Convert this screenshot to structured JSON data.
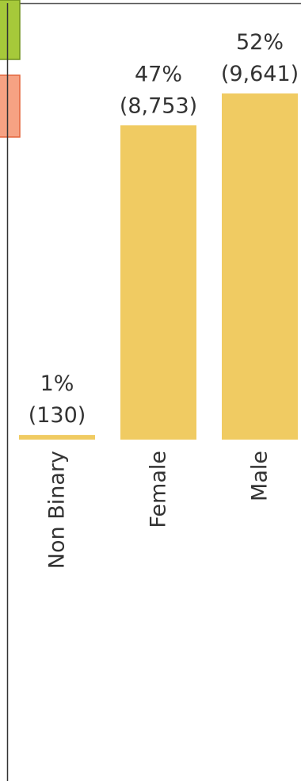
{
  "chart_data": {
    "type": "bar",
    "categories": [
      "Non Binary",
      "Female",
      "Male"
    ],
    "values": [
      130,
      8753,
      9641
    ],
    "percent_labels": [
      "1%",
      "47%",
      "52%"
    ],
    "count_labels": [
      "(130)",
      "(8,753)",
      "(9,641)"
    ],
    "title": "",
    "xlabel": "",
    "ylabel": "",
    "ylim": [
      0,
      9641
    ],
    "grid": false,
    "legend": "none"
  },
  "colors": {
    "bar": "#f0cb62",
    "text": "#333333",
    "axis_line": "#333333",
    "frame_line": "#555555",
    "green_tab": "#a6c93a",
    "green_tab_border": "#6e8f1c",
    "orange_tab": "#f6a283",
    "orange_tab_border": "#e3653c"
  }
}
